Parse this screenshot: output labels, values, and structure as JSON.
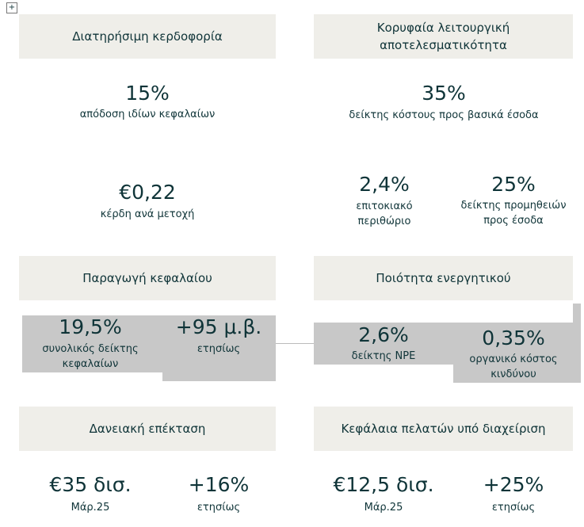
{
  "sections": [
    {
      "title": "Διατηρήσιμη κερδοφορία",
      "metrics": [
        {
          "value": "15%",
          "label": "απόδοση ιδίων κεφαλαίων"
        },
        {
          "value": "€0,22",
          "label": "κέρδη ανά μετοχή"
        }
      ]
    },
    {
      "title": "Κορυφαία λειτουργική αποτελεσματικότητα",
      "metrics": [
        {
          "value": "35%",
          "label": "δείκτης κόστους προς βασικά έσοδα"
        },
        {
          "value": "2,4%",
          "label": "επιτοκιακό περιθώριο"
        },
        {
          "value": "25%",
          "label": "δείκτης προμηθειών προς έσοδα"
        }
      ]
    },
    {
      "title": "Παραγωγή κεφαλαίου",
      "metrics": [
        {
          "value": "19,5%",
          "label": "συνολικός δείκτης κεφαλαίων"
        },
        {
          "value": "+95 μ.β.",
          "label": "ετησίως"
        }
      ]
    },
    {
      "title": "Ποιότητα ενεργητικού",
      "metrics": [
        {
          "value": "2,6%",
          "label": "δείκτης NPE"
        },
        {
          "value": "0,35%",
          "label": "οργανικό κόστος κινδύνου"
        }
      ]
    },
    {
      "title": "Δανειακή επέκταση",
      "metrics": [
        {
          "value": "€35 δισ.",
          "label": "Μάρ.25"
        },
        {
          "value": "+16%",
          "label": "ετησίως"
        }
      ]
    },
    {
      "title": "Κεφάλαια πελατών υπό διαχείριση",
      "metrics": [
        {
          "value": "€12,5 δισ.",
          "label": "Μάρ.25"
        },
        {
          "value": "+25%",
          "label": "ετησίως"
        }
      ]
    }
  ]
}
